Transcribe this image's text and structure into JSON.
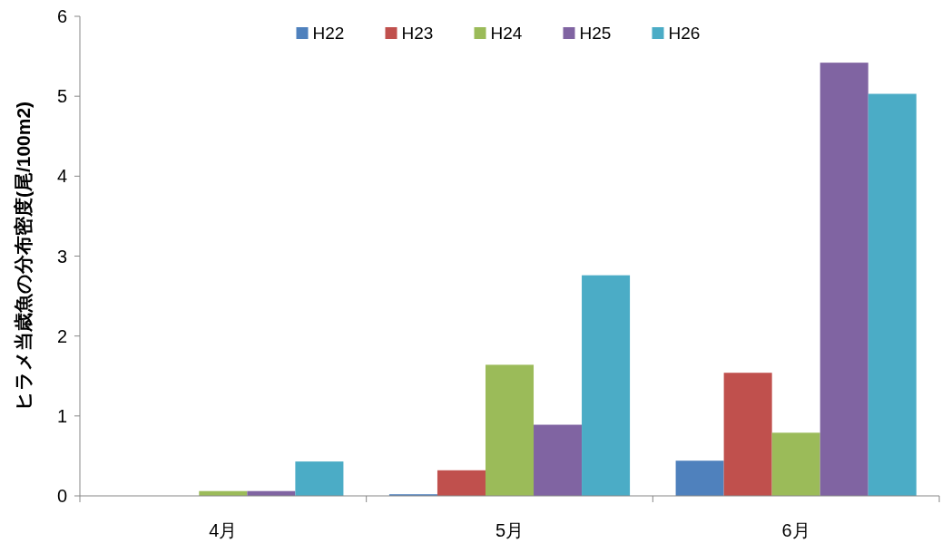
{
  "chart_data": {
    "type": "bar",
    "ylabel": "ヒラメ当歳魚の分布密度(尾/100m2)",
    "categories": [
      "4月",
      "5月",
      "6月"
    ],
    "series": [
      {
        "name": "H22",
        "color": "#4f81bd",
        "values": [
          0,
          0.02,
          0.44
        ]
      },
      {
        "name": "H23",
        "color": "#c0504d",
        "values": [
          0,
          0.32,
          1.54
        ]
      },
      {
        "name": "H24",
        "color": "#9bbb59",
        "values": [
          0.06,
          1.64,
          0.79
        ]
      },
      {
        "name": "H25",
        "color": "#8064a2",
        "values": [
          0.06,
          0.89,
          5.42
        ]
      },
      {
        "name": "H26",
        "color": "#4bacc6",
        "values": [
          0.43,
          2.76,
          5.03
        ]
      }
    ],
    "ylim": [
      0,
      6
    ],
    "yticks": [
      0,
      1,
      2,
      3,
      4,
      5,
      6
    ],
    "grid": false,
    "legend": "top"
  }
}
